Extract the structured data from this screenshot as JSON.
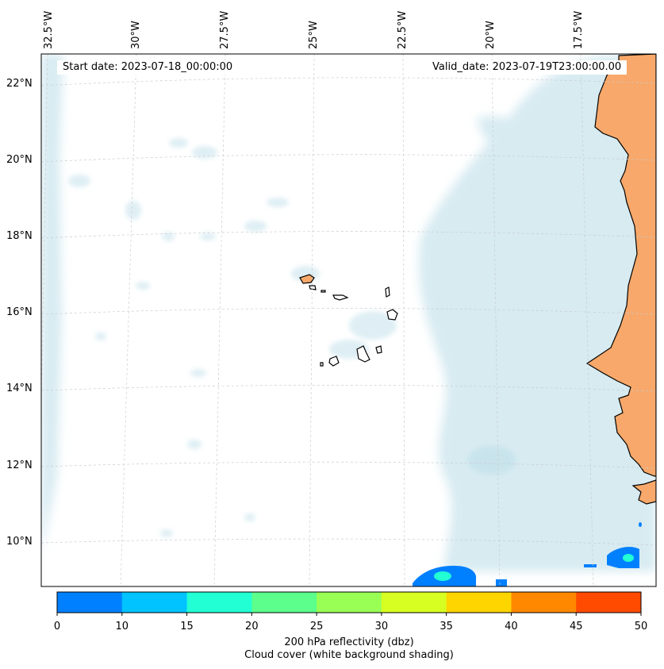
{
  "map": {
    "start_date": "Start date: 2023-07-18_00:00:00",
    "valid_date": "Valid_date: 2023-07-19T23:00:00.00",
    "longitude_labels": [
      "32.5°W",
      "30°W",
      "27.5°W",
      "25°W",
      "22.5°W",
      "20°W",
      "17.5°W"
    ],
    "latitude_labels": [
      "22°N",
      "20°N",
      "18°N",
      "16°N",
      "14°N",
      "12°N",
      "10°N"
    ],
    "cloud_color": "#b7dbe7",
    "land_color": "#f7a86a",
    "radar_colors": {
      "low": "#0080ff",
      "mid": "#22ffd4"
    }
  },
  "colorbar": {
    "ticks": [
      "0",
      "10",
      "15",
      "20",
      "25",
      "30",
      "35",
      "40",
      "45",
      "50"
    ],
    "colors": [
      "#0080ff",
      "#00c3ff",
      "#22ffd4",
      "#5cff8b",
      "#99ff55",
      "#d7ff21",
      "#ffd500",
      "#ff8800",
      "#ff4b00"
    ],
    "label_line1": "200 hPa reflectivity (dbz)",
    "label_line2": "Cloud cover (white background shading)"
  }
}
